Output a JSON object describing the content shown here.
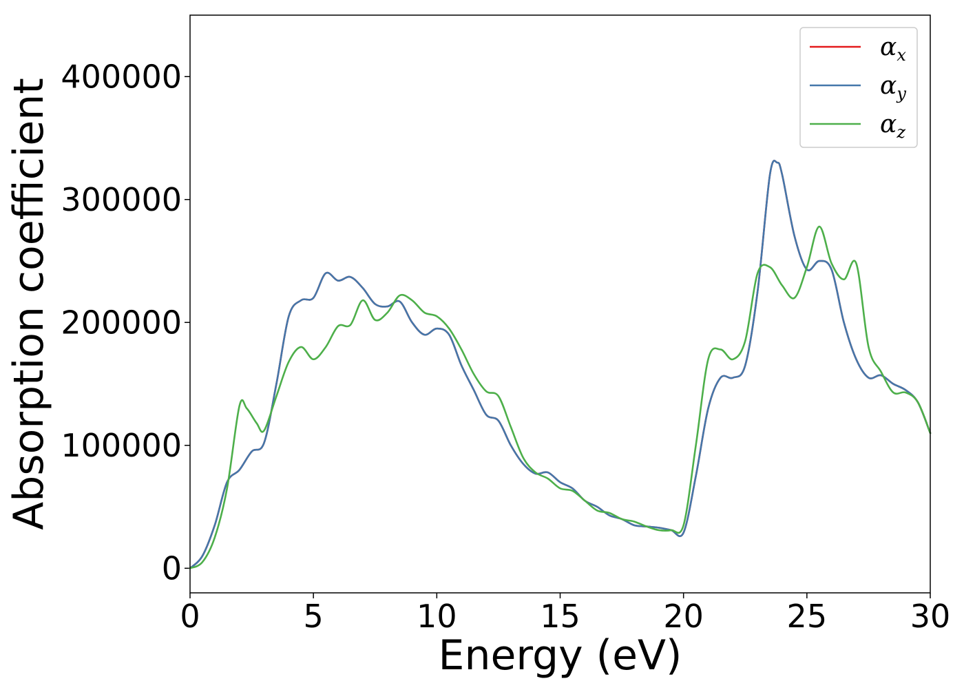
{
  "chart_data": {
    "type": "line",
    "title": "",
    "xlabel": "Energy (eV)",
    "ylabel": "Absorption coefficient",
    "xlim": [
      0,
      30
    ],
    "ylim": [
      -20000,
      450000
    ],
    "xticks": [
      0,
      5,
      10,
      15,
      20,
      25,
      30
    ],
    "yticks": [
      0,
      100000,
      200000,
      300000,
      400000
    ],
    "grid": false,
    "legend_position": "top-right",
    "series": [
      {
        "name": "α_x",
        "symbol": "α",
        "subscript": "x",
        "color": "#e41a1c",
        "x": [
          0,
          0.5,
          1,
          1.5,
          2,
          2.5,
          3,
          3.5,
          4,
          4.5,
          5,
          5.5,
          6,
          6.5,
          7,
          7.5,
          8,
          8.5,
          9,
          9.5,
          10,
          10.5,
          11,
          11.5,
          12,
          12.5,
          13,
          13.5,
          14,
          14.5,
          15,
          15.5,
          16,
          16.5,
          17,
          17.5,
          18,
          18.5,
          19,
          19.5,
          20,
          20.5,
          21,
          21.5,
          22,
          22.5,
          23,
          23.5,
          23.8,
          24,
          24.5,
          25,
          25.5,
          26,
          26.5,
          27,
          27.5,
          28,
          28.5,
          29,
          29.5,
          30
        ],
        "y": [
          0,
          10000,
          35000,
          70000,
          80000,
          95000,
          102000,
          150000,
          205000,
          218000,
          220000,
          240000,
          234000,
          237000,
          228000,
          215000,
          213000,
          217000,
          200000,
          190000,
          195000,
          190000,
          165000,
          145000,
          125000,
          120000,
          100000,
          85000,
          77000,
          78000,
          70000,
          65000,
          55000,
          50000,
          43000,
          40000,
          35000,
          34000,
          33000,
          31000,
          29000,
          75000,
          130000,
          155000,
          155000,
          165000,
          225000,
          320000,
          330000,
          320000,
          270000,
          243000,
          250000,
          243000,
          200000,
          170000,
          155000,
          157000,
          150000,
          145000,
          135000,
          110000
        ]
      },
      {
        "name": "α_y",
        "symbol": "α",
        "subscript": "y",
        "color": "#4477aa",
        "x": [
          0,
          0.5,
          1,
          1.5,
          2,
          2.5,
          3,
          3.5,
          4,
          4.5,
          5,
          5.5,
          6,
          6.5,
          7,
          7.5,
          8,
          8.5,
          9,
          9.5,
          10,
          10.5,
          11,
          11.5,
          12,
          12.5,
          13,
          13.5,
          14,
          14.5,
          15,
          15.5,
          16,
          16.5,
          17,
          17.5,
          18,
          18.5,
          19,
          19.5,
          20,
          20.5,
          21,
          21.5,
          22,
          22.5,
          23,
          23.5,
          23.8,
          24,
          24.5,
          25,
          25.5,
          26,
          26.5,
          27,
          27.5,
          28,
          28.5,
          29,
          29.5,
          30
        ],
        "y": [
          0,
          10000,
          35000,
          70000,
          80000,
          95000,
          102000,
          150000,
          205000,
          218000,
          220000,
          240000,
          234000,
          237000,
          228000,
          215000,
          213000,
          217000,
          200000,
          190000,
          195000,
          190000,
          165000,
          145000,
          125000,
          120000,
          100000,
          85000,
          77000,
          78000,
          70000,
          65000,
          55000,
          50000,
          43000,
          40000,
          35000,
          34000,
          33000,
          31000,
          29000,
          75000,
          130000,
          155000,
          155000,
          165000,
          225000,
          320000,
          330000,
          320000,
          270000,
          243000,
          250000,
          243000,
          200000,
          170000,
          155000,
          157000,
          150000,
          145000,
          135000,
          110000
        ]
      },
      {
        "name": "α_z",
        "symbol": "α",
        "subscript": "z",
        "color": "#4daf4a",
        "x": [
          0,
          0.5,
          1,
          1.5,
          2,
          2.3,
          2.7,
          3,
          3.5,
          4,
          4.5,
          5,
          5.5,
          6,
          6.5,
          7,
          7.5,
          8,
          8.5,
          9,
          9.5,
          10,
          10.5,
          11,
          11.5,
          12,
          12.5,
          13,
          13.5,
          14,
          14.5,
          15,
          15.5,
          16,
          16.5,
          17,
          17.5,
          18,
          18.5,
          19,
          19.5,
          20,
          20.5,
          21,
          21.5,
          22,
          22.5,
          23,
          23.5,
          24,
          24.5,
          25,
          25.5,
          26,
          26.5,
          27,
          27.5,
          28,
          28.5,
          29,
          29.5,
          30
        ],
        "y": [
          0,
          5000,
          25000,
          65000,
          132000,
          130000,
          118000,
          112000,
          140000,
          168000,
          180000,
          170000,
          180000,
          197000,
          198000,
          218000,
          202000,
          208000,
          222000,
          218000,
          208000,
          205000,
          195000,
          178000,
          158000,
          144000,
          140000,
          115000,
          90000,
          78000,
          73000,
          65000,
          63000,
          55000,
          47000,
          45000,
          40000,
          38000,
          34000,
          31000,
          31000,
          35000,
          100000,
          170000,
          178000,
          170000,
          185000,
          240000,
          245000,
          230000,
          220000,
          245000,
          278000,
          248000,
          235000,
          248000,
          180000,
          160000,
          143000,
          143000,
          135000,
          110000
        ]
      }
    ]
  }
}
